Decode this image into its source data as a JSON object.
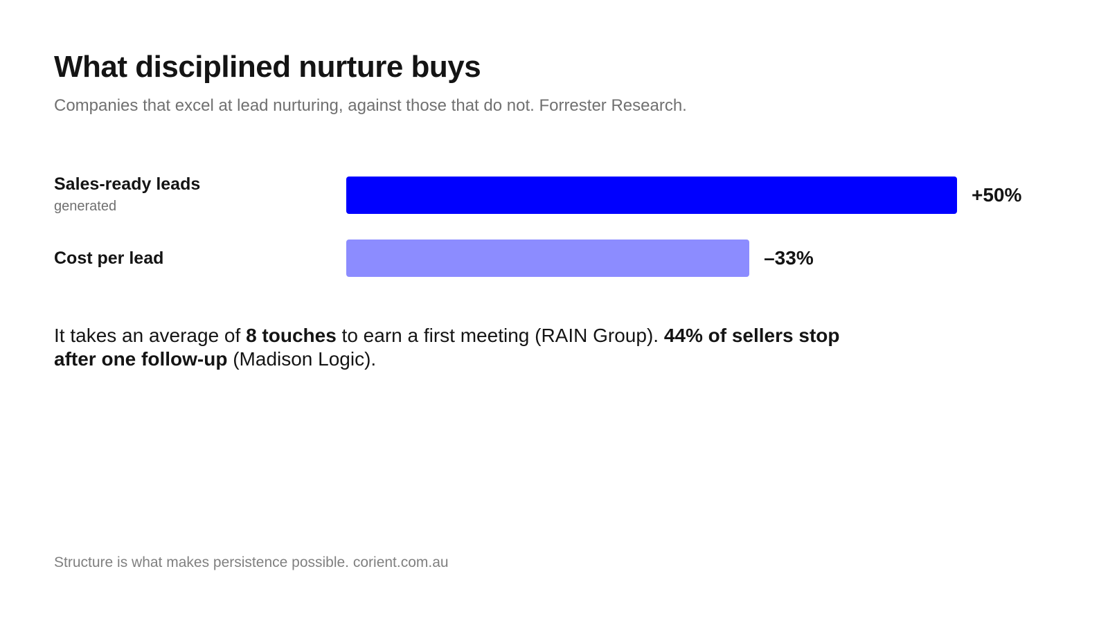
{
  "chart_data": {
    "type": "bar",
    "orientation": "horizontal",
    "title": "What disciplined nurture buys",
    "subtitle": "Companies that excel at lead nurturing, against those that do not. Forrester Research.",
    "categories": [
      "Sales-ready leads",
      "Cost per lead"
    ],
    "category_sublabels": [
      "generated",
      null
    ],
    "values": [
      50,
      -33
    ],
    "value_labels": [
      "+50%",
      "–33%"
    ],
    "colors": [
      "#0000ff",
      "#8c8cff"
    ],
    "note": [
      {
        "text": "It takes an average of ",
        "bold": false
      },
      {
        "text": "8 touches",
        "bold": true
      },
      {
        "text": " to earn a first meeting (RAIN Group). ",
        "bold": false
      },
      {
        "text": "44% of sellers stop after one follow-up",
        "bold": true
      },
      {
        "text": " (Madison Logic).",
        "bold": false
      }
    ],
    "footer": "Structure is what makes persistence possible. corient.com.au"
  }
}
